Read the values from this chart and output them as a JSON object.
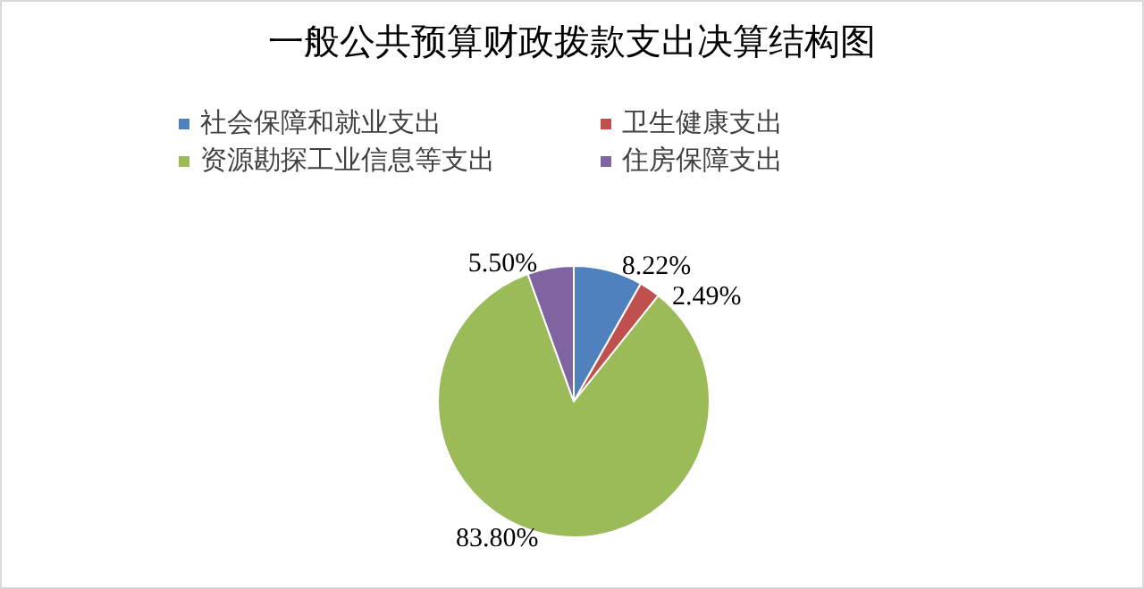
{
  "chart_data": {
    "type": "pie",
    "title": "一般公共预算财政拨款支出决算结构图",
    "categories": [
      "社会保障和就业支出",
      "卫生健康支出",
      "资源勘探工业信息等支出",
      "住房保障支出"
    ],
    "values": [
      8.22,
      2.49,
      83.8,
      5.5
    ],
    "colors": [
      "#4f81bd",
      "#c0504d",
      "#9bbb59",
      "#8064a2"
    ],
    "value_labels": [
      "8.22%",
      "2.49%",
      "83.80%",
      "5.50%"
    ],
    "legend": "top"
  }
}
